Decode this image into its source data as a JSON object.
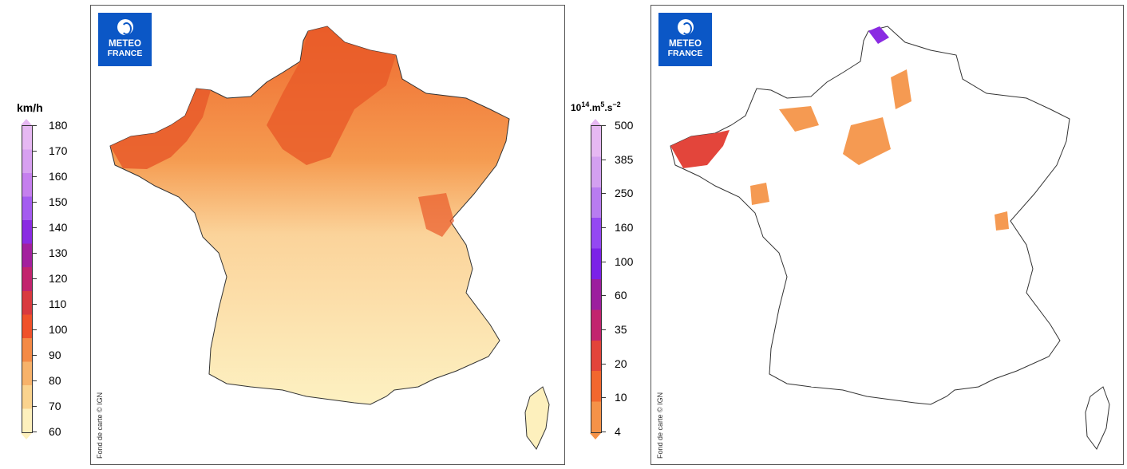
{
  "logo": {
    "line1": "METEO",
    "line2": "FRANCE"
  },
  "credit": "Fond de carte © IGN",
  "left_legend": {
    "unit": "km/h",
    "ticks": [
      "180",
      "170",
      "160",
      "150",
      "140",
      "130",
      "120",
      "110",
      "100",
      "90",
      "80",
      "70",
      "60"
    ],
    "colors": [
      "#e6b8f2",
      "#d7a0f0",
      "#c57fee",
      "#a45cf0",
      "#8a2be2",
      "#a3209e",
      "#c2246e",
      "#d93a3f",
      "#f0512a",
      "#f48a46",
      "#f7b26a",
      "#fad38e",
      "#fdf0bd"
    ]
  },
  "right_legend": {
    "unit_base": "10",
    "unit_exp": "14",
    "unit_rest": ".m",
    "unit_exp2": "5",
    "unit_rest2": ".s",
    "unit_exp3": "−2",
    "ticks": [
      "500",
      "385",
      "250",
      "160",
      "100",
      "60",
      "35",
      "20",
      "10",
      "4"
    ],
    "colors": [
      "#e6b8f2",
      "#d3a0f0",
      "#b87cf0",
      "#9448f2",
      "#7b22e8",
      "#9c1f9e",
      "#c2246e",
      "#e2443a",
      "#f2672e",
      "#f59248"
    ]
  },
  "left_map": {
    "title": ""
  },
  "right_map": {
    "title": ""
  }
}
